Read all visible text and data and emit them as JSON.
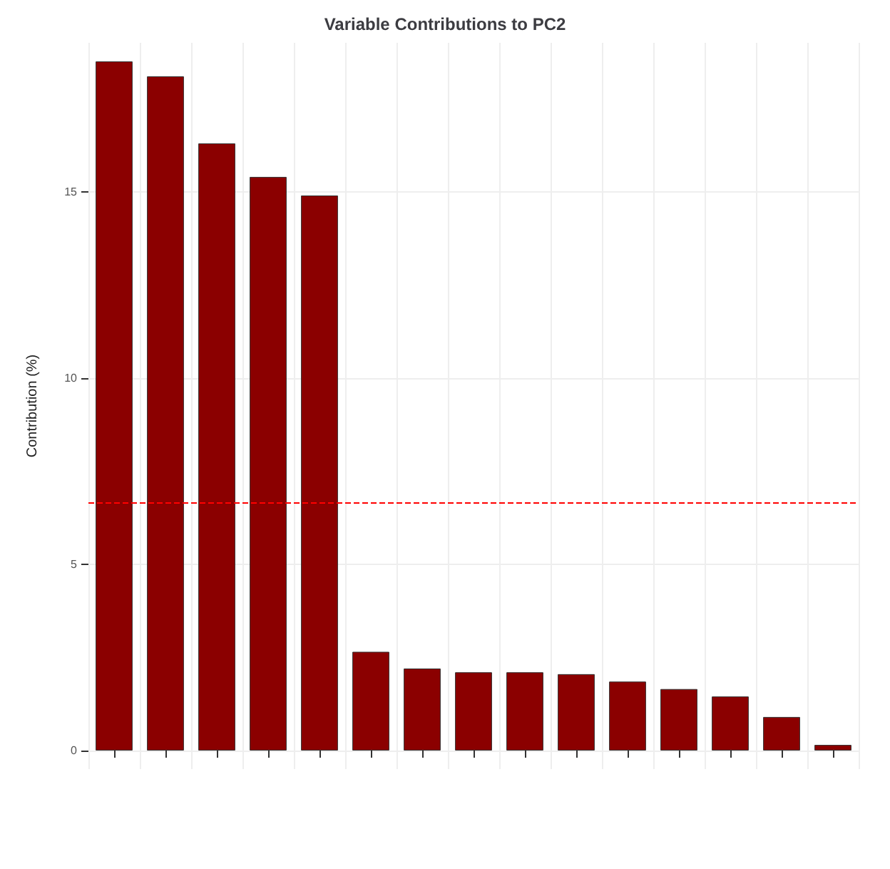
{
  "chart_data": {
    "type": "bar",
    "title": "Variable Contributions to PC2",
    "ylabel": "Contribution (%)",
    "categories": [
      null,
      null,
      null,
      null,
      null,
      null,
      null,
      null,
      null,
      null,
      null,
      null,
      null,
      null,
      null
    ],
    "values": [
      18.5,
      18.1,
      16.3,
      15.4,
      14.9,
      2.65,
      2.2,
      2.1,
      2.1,
      2.05,
      1.85,
      1.65,
      1.45,
      0.9,
      0.15
    ],
    "color": "#8b0000",
    "ylim": [
      -0.5,
      19
    ],
    "yticks": [
      0,
      5,
      10,
      15
    ],
    "grid": true,
    "ref_lines": [
      {
        "axis": "y",
        "value": 6.67,
        "color": "#ff0000",
        "line_style": "dashed"
      }
    ]
  }
}
